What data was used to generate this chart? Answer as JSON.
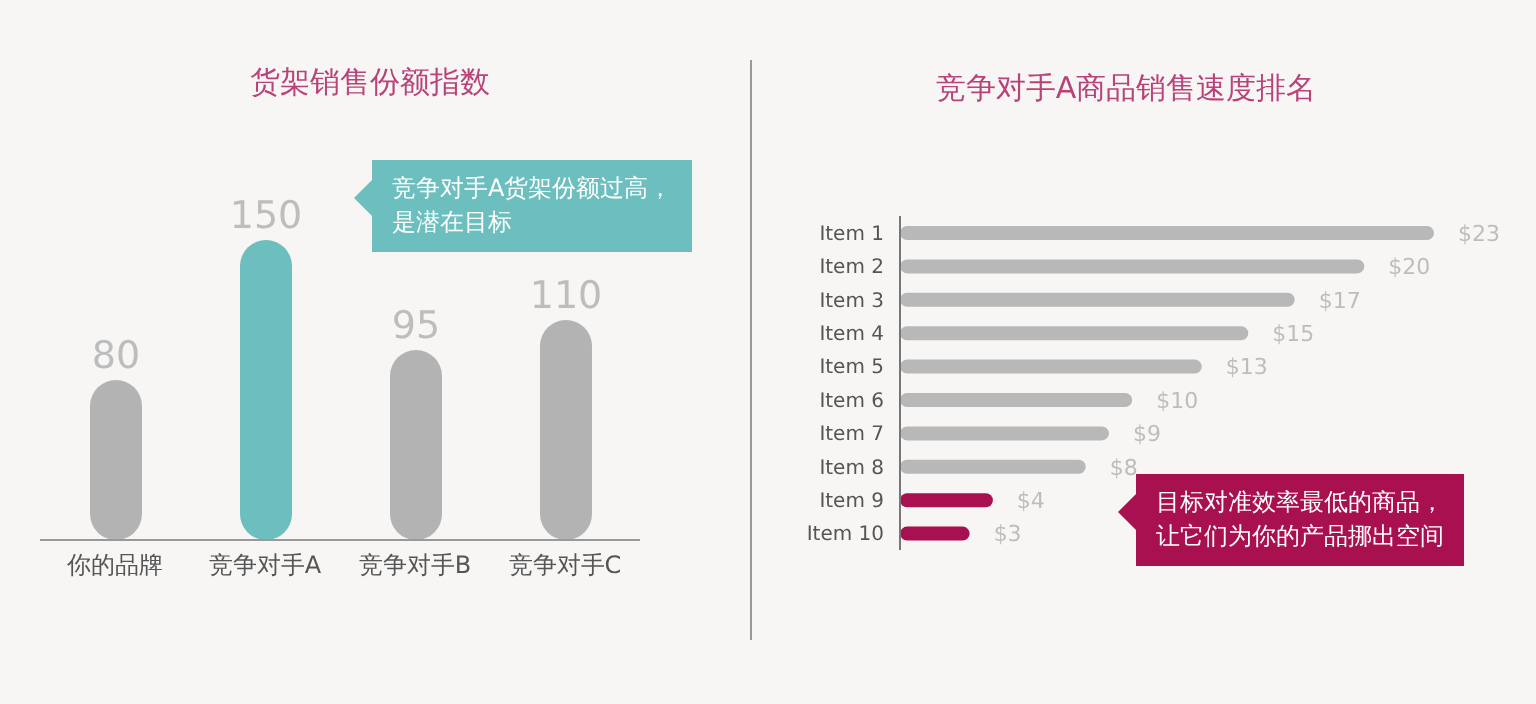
{
  "chart_data": [
    {
      "type": "bar",
      "title": "货架销售份额指数",
      "categories": [
        "你的品牌",
        "竞争对手A",
        "竞争对手B",
        "竞争对手C"
      ],
      "values": [
        80,
        150,
        95,
        110
      ],
      "colors": [
        "#b3b3b3",
        "#6dbfbf",
        "#b3b3b3",
        "#b3b3b3"
      ],
      "data_labels": true,
      "tick_labels": "x",
      "legend": false,
      "grid": false,
      "annotations": [
        "竞争对手A货架份额过高，是潜在目标"
      ]
    },
    {
      "type": "bar",
      "orientation": "horizontal",
      "title": "竞争对手A商品销售速度排名",
      "categories": [
        "Item 1",
        "Item 2",
        "Item 3",
        "Item 4",
        "Item 5",
        "Item 6",
        "Item 7",
        "Item 8",
        "Item 9",
        "Item 10"
      ],
      "values": [
        23,
        20,
        17,
        15,
        13,
        10,
        9,
        8,
        4,
        3
      ],
      "value_labels": [
        "$23",
        "$20",
        "$17",
        "$15",
        "$13",
        "$10",
        "$9",
        "$8",
        "$4",
        "$3"
      ],
      "colors": [
        "#b8b8b8",
        "#b8b8b8",
        "#b8b8b8",
        "#b8b8b8",
        "#b8b8b8",
        "#b8b8b8",
        "#b8b8b8",
        "#b8b8b8",
        "#a8104f",
        "#a8104f"
      ],
      "tick_labels": "y",
      "legend": false,
      "grid": false,
      "annotations": [
        "目标对准效率最低的商品，让它们为你的产品挪出空间"
      ]
    }
  ]
}
